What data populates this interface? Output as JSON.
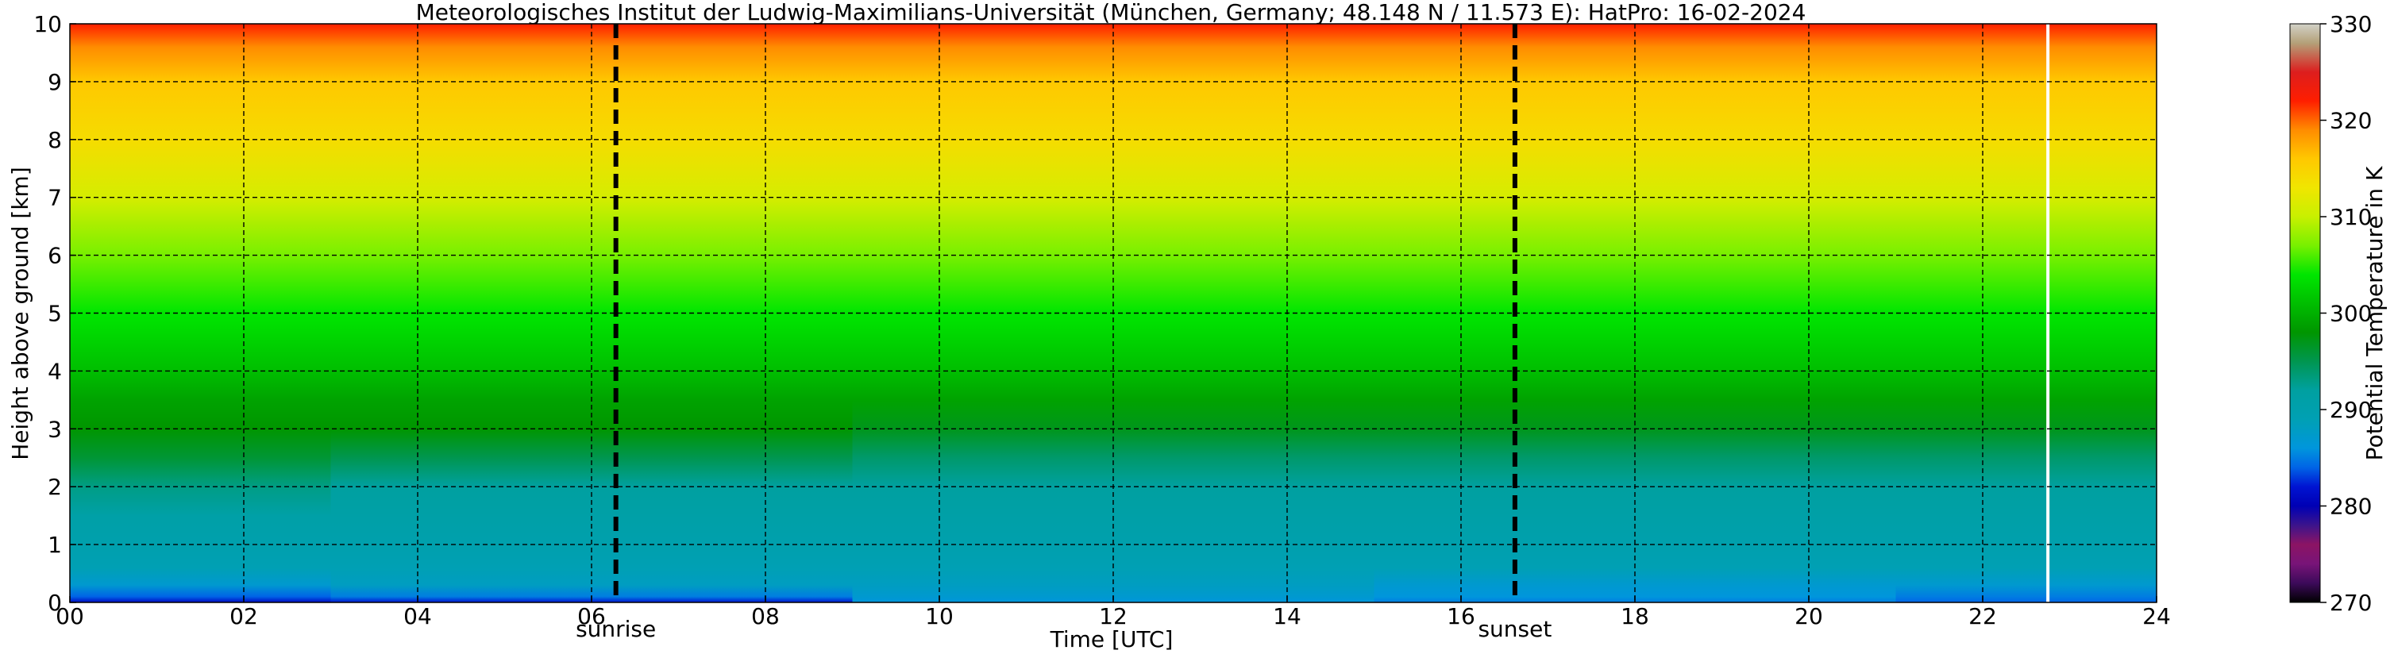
{
  "chart_data": {
    "type": "heatmap",
    "title": "Meteorologisches Institut der Ludwig-Maximilians-Universität (München, Germany; 48.148 N / 11.573 E):    HatPro: 16-02-2024",
    "xlabel": "Time [UTC]",
    "ylabel": "Height above ground [km]",
    "xlim": [
      0,
      24
    ],
    "ylim": [
      0,
      10
    ],
    "x_ticks": [
      "00",
      "02",
      "04",
      "06",
      "08",
      "10",
      "12",
      "14",
      "16",
      "18",
      "20",
      "22",
      "24"
    ],
    "y_ticks": [
      "0",
      "1",
      "2",
      "3",
      "4",
      "5",
      "6",
      "7",
      "8",
      "9",
      "10"
    ],
    "grid": true,
    "colorbar": {
      "label": "Potential Temperature in K",
      "range": [
        270,
        330
      ],
      "ticks": [
        "270",
        "280",
        "290",
        "300",
        "310",
        "320",
        "330"
      ]
    },
    "annotations": [
      {
        "label": "sunrise",
        "x": 6.28
      },
      {
        "label": "sunset",
        "x": 16.62
      }
    ],
    "data_gap_x": 22.75,
    "profile_heights_km": [
      0,
      0.1,
      0.3,
      0.6,
      1.0,
      1.5,
      2.0,
      2.5,
      3.0,
      3.5,
      4.0,
      5.0,
      6.0,
      7.0,
      8.0,
      9.0,
      9.6,
      10.0
    ],
    "profiles": [
      {
        "time": 0,
        "values": [
          281,
          284,
          287,
          289,
          290,
          291,
          293,
          296,
          298,
          299,
          301,
          304,
          307,
          311,
          314,
          316,
          319,
          322
        ]
      },
      {
        "time": 6,
        "values": [
          282,
          285,
          288,
          289,
          290,
          291,
          292,
          295,
          298,
          299,
          301,
          304,
          307,
          311,
          314,
          316,
          319,
          322
        ]
      },
      {
        "time": 12,
        "values": [
          286,
          287,
          288,
          289,
          290,
          291,
          292,
          294,
          297,
          299,
          301,
          304,
          307,
          311,
          314,
          316,
          319,
          322
        ]
      },
      {
        "time": 18,
        "values": [
          285,
          286,
          287,
          289,
          290,
          291,
          292,
          294,
          297,
          299,
          301,
          304,
          307,
          311,
          314,
          316,
          319,
          322
        ]
      },
      {
        "time": 24,
        "values": [
          284,
          285,
          287,
          289,
          290,
          291,
          292,
          294,
          297,
          299,
          301,
          304,
          307,
          311,
          314,
          316,
          319,
          322
        ]
      }
    ],
    "colormap": [
      {
        "value": 270,
        "color": "#000000"
      },
      {
        "value": 272,
        "color": "#3c0a5a"
      },
      {
        "value": 274,
        "color": "#781478"
      },
      {
        "value": 276,
        "color": "#8c1464"
      },
      {
        "value": 278,
        "color": "#3c148c"
      },
      {
        "value": 280,
        "color": "#0000b4"
      },
      {
        "value": 282,
        "color": "#0014d2"
      },
      {
        "value": 284,
        "color": "#0064e6"
      },
      {
        "value": 286,
        "color": "#0096dc"
      },
      {
        "value": 289,
        "color": "#00a0b4"
      },
      {
        "value": 292,
        "color": "#00a0a0"
      },
      {
        "value": 295,
        "color": "#009650"
      },
      {
        "value": 298,
        "color": "#009600"
      },
      {
        "value": 301,
        "color": "#00be00"
      },
      {
        "value": 304,
        "color": "#00e600"
      },
      {
        "value": 307,
        "color": "#78f000"
      },
      {
        "value": 310,
        "color": "#c8f000"
      },
      {
        "value": 313,
        "color": "#f0e600"
      },
      {
        "value": 316,
        "color": "#ffc800"
      },
      {
        "value": 319,
        "color": "#ff8c00"
      },
      {
        "value": 322,
        "color": "#ff1e00"
      },
      {
        "value": 325,
        "color": "#dc1e1e"
      },
      {
        "value": 328,
        "color": "#b4a078"
      },
      {
        "value": 330,
        "color": "#d2d2c8"
      }
    ]
  }
}
